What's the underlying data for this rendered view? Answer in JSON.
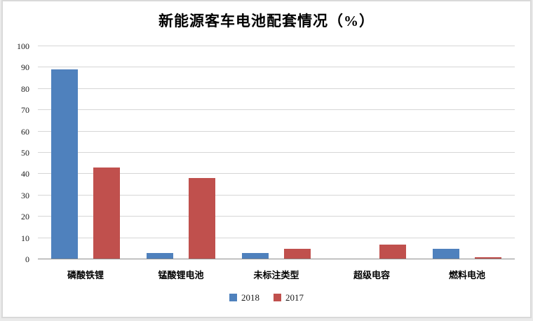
{
  "chart_data": {
    "type": "bar",
    "title": "新能源客车电池配套情况（%）",
    "categories": [
      "磷酸铁锂",
      "锰酸锂电池",
      "未标注类型",
      "超级电容",
      "燃料电池"
    ],
    "series": [
      {
        "name": "2018",
        "color": "#4f81bd",
        "values": [
          89,
          3,
          3,
          0,
          5
        ]
      },
      {
        "name": "2017",
        "color": "#c0504d",
        "values": [
          43,
          38,
          5,
          7,
          1
        ]
      }
    ],
    "xlabel": "",
    "ylabel": "",
    "ylim": [
      0,
      100
    ],
    "yticks": [
      0,
      10,
      20,
      30,
      40,
      50,
      60,
      70,
      80,
      90,
      100
    ],
    "grid": true,
    "legend_position": "bottom"
  }
}
